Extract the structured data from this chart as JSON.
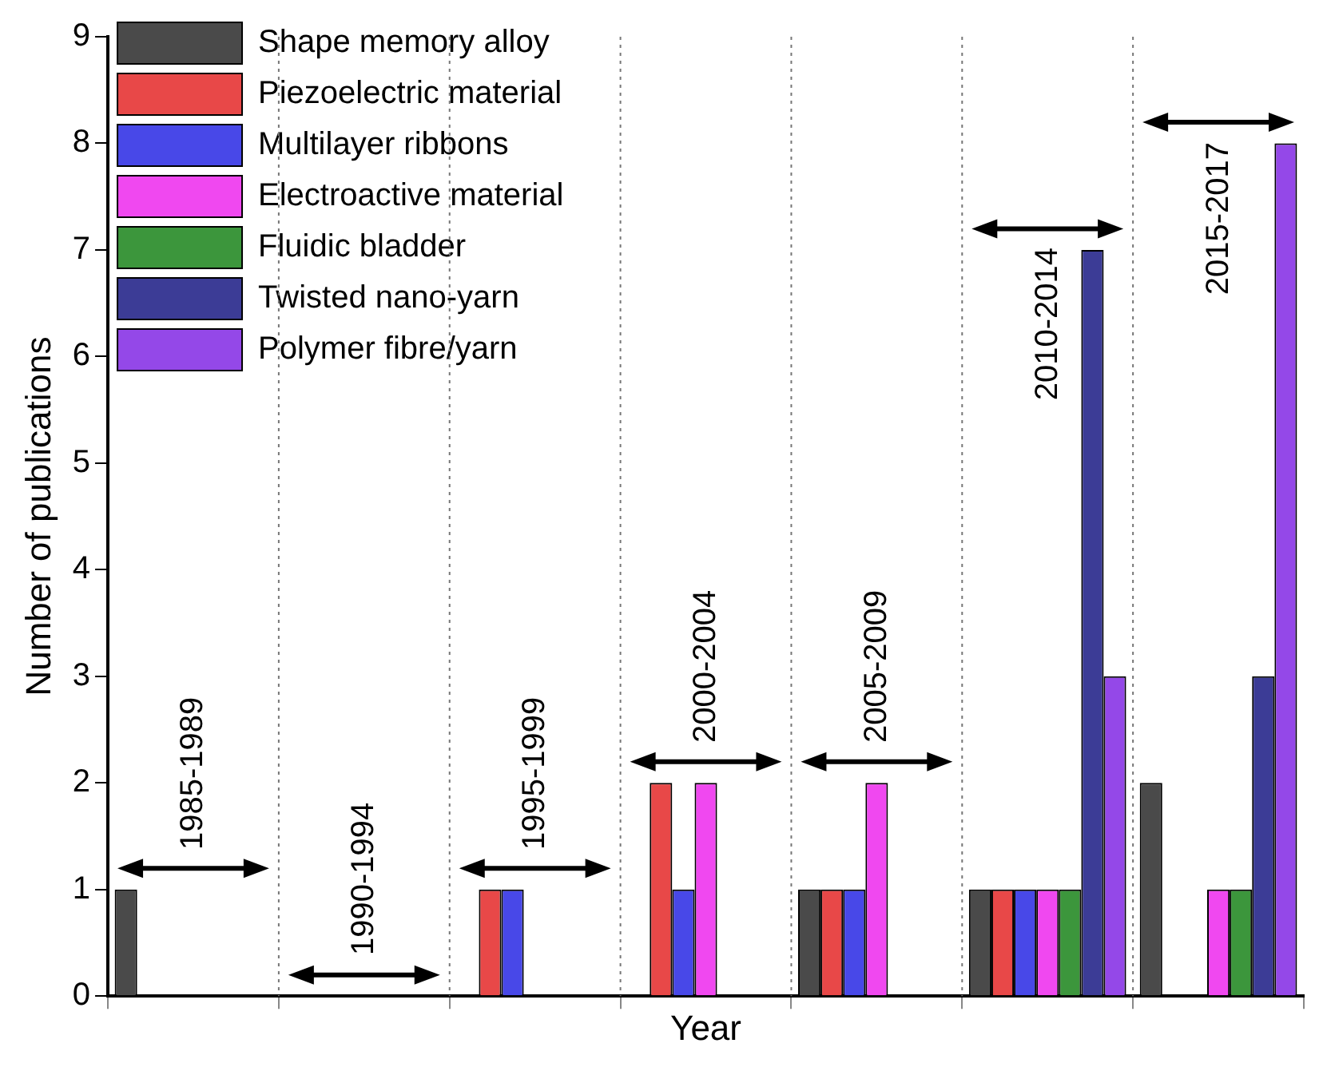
{
  "chart_data": {
    "type": "bar",
    "xlabel": "Year",
    "ylabel": "Number of publications",
    "categories": [
      null,
      null,
      null,
      null,
      null,
      null,
      null
    ],
    "series": [
      {
        "name": "Shape memory alloy",
        "color": "#4a4a4a",
        "values": [
          1,
          0,
          0,
          0,
          1,
          1,
          2
        ]
      },
      {
        "name": "Piezoelectric material",
        "color": "#e84848",
        "values": [
          0,
          0,
          1,
          2,
          1,
          1,
          0
        ]
      },
      {
        "name": "Multilayer ribbons",
        "color": "#4848e8",
        "values": [
          0,
          0,
          1,
          1,
          1,
          1,
          0
        ]
      },
      {
        "name": "Electroactive material",
        "color": "#f048f0",
        "values": [
          0,
          0,
          0,
          2,
          2,
          1,
          1
        ]
      },
      {
        "name": "Fluidic bladder",
        "color": "#3c963c",
        "values": [
          0,
          0,
          0,
          0,
          0,
          1,
          1
        ]
      },
      {
        "name": "Twisted nano-yarn",
        "color": "#3c3c96",
        "values": [
          0,
          0,
          0,
          0,
          0,
          7,
          3
        ]
      },
      {
        "name": "Polymer fibre/yarn",
        "color": "#9448e8",
        "values": [
          0,
          0,
          0,
          0,
          0,
          3,
          8
        ]
      }
    ],
    "ylim": [
      0,
      9
    ],
    "yticks": [
      0,
      1,
      2,
      3,
      4,
      5,
      6,
      7,
      8,
      9
    ],
    "grid": "x",
    "legend": "top left",
    "tick_labels": "y",
    "annotations": [
      "1985-1989",
      "1990-1994",
      "1995-1999",
      "2000-2004",
      "2005-2009",
      "2010-2014",
      "2015-2017"
    ]
  }
}
